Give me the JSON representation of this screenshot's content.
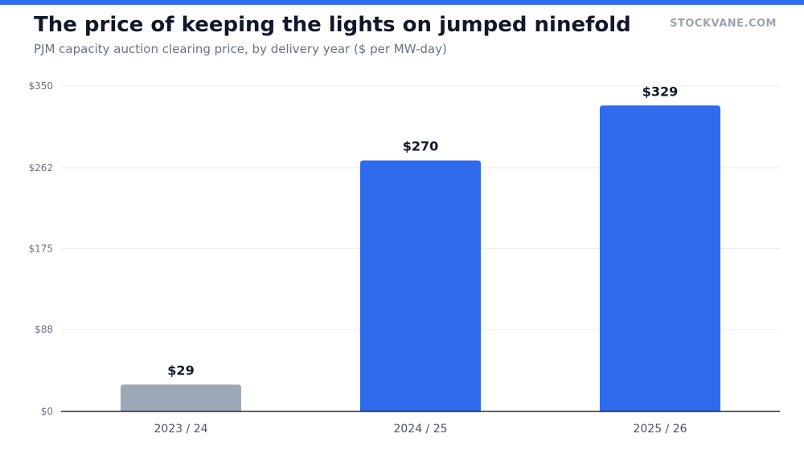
{
  "header": {
    "title": "The price of keeping the lights on jumped ninefold",
    "subtitle": "PJM capacity auction clearing price, by delivery year ($ per MW-day)",
    "brand": "STOCKVANE.COM"
  },
  "colors": {
    "accent": "#2f6bec",
    "muted_bar": "#9ca8b8",
    "grid": "#e9ecef",
    "axis": "#1f2937"
  },
  "chart_data": {
    "type": "bar",
    "title": "The price of keeping the lights on jumped ninefold",
    "subtitle": "PJM capacity auction clearing price, by delivery year ($ per MW-day)",
    "xlabel": "",
    "ylabel": "",
    "categories": [
      "2023 / 24",
      "2024 / 25",
      "2025 / 26"
    ],
    "values": [
      29,
      270,
      329
    ],
    "data_labels": [
      "$29",
      "$270",
      "$329"
    ],
    "bar_colors": [
      "#9ca8b8",
      "#2f6bec",
      "#2f6bec"
    ],
    "ylim": [
      0,
      350
    ],
    "yticks": [
      0,
      88,
      175,
      262,
      350
    ],
    "ytick_labels": [
      "$0",
      "$88",
      "$175",
      "$262",
      "$350"
    ],
    "grid": true,
    "legend": "none"
  }
}
